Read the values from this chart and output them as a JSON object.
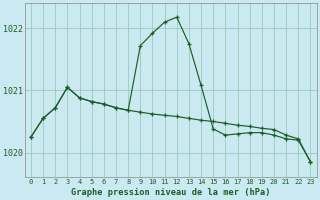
{
  "title": "Graphe pression niveau de la mer (hPa)",
  "background_color": "#cbe9f0",
  "grid_color": "#99ccbb",
  "line_color": "#1a5e28",
  "x_labels": [
    "0",
    "1",
    "2",
    "3",
    "4",
    "5",
    "6",
    "7",
    "8",
    "9",
    "10",
    "11",
    "12",
    "13",
    "14",
    "15",
    "16",
    "17",
    "18",
    "19",
    "20",
    "21",
    "22",
    "23"
  ],
  "ylim": [
    1019.6,
    1022.4
  ],
  "yticks": [
    1020,
    1021,
    1022
  ],
  "curve1": [
    1020.25,
    1020.55,
    1020.72,
    1021.05,
    1020.88,
    1020.82,
    1020.78,
    1020.72,
    1020.68,
    1021.72,
    1021.92,
    1022.1,
    1022.18,
    1021.75,
    1021.08,
    1020.38,
    1020.28,
    1020.3,
    1020.32,
    1020.32,
    1020.28,
    1020.22,
    1020.2,
    1019.85
  ],
  "curve2": [
    1020.25,
    1020.55,
    1020.72,
    1021.05,
    1020.88,
    1020.82,
    1020.78,
    1020.72,
    1020.68,
    1020.65,
    1020.62,
    1020.6,
    1020.58,
    1020.55,
    1020.52,
    1020.5,
    1020.47,
    1020.44,
    1020.42,
    1020.39,
    1020.37,
    1020.28,
    1020.22,
    1019.85
  ],
  "figsize": [
    3.2,
    2.0
  ],
  "dpi": 100
}
